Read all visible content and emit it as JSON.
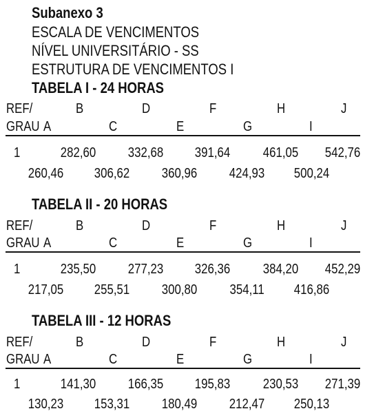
{
  "header": {
    "subanexo": "Subanexo 3",
    "lines": [
      "ESCALA DE VENCIMENTOS",
      "NÍVEL UNIVERSITÁRIO - SS",
      "ESTRUTURA DE VENCIMENTOS I"
    ]
  },
  "columns": {
    "ref": "REF/",
    "grau": "GRAU",
    "upper": [
      "B",
      "D",
      "F",
      "H",
      "J"
    ],
    "lower": [
      "A",
      "C",
      "E",
      "G",
      "I"
    ]
  },
  "tables": [
    {
      "title": "TABELA I - 24 HORAS",
      "ref_num": "1",
      "upper_values": [
        "282,60",
        "332,68",
        "391,64",
        "461,05",
        "542,76"
      ],
      "lower_values": [
        "260,46",
        "306,62",
        "360,96",
        "424,93",
        "500,24"
      ]
    },
    {
      "title": "TABELA II - 20 HORAS",
      "ref_num": "1",
      "upper_values": [
        "235,50",
        "277,23",
        "326,36",
        "384,20",
        "452,29"
      ],
      "lower_values": [
        "217,05",
        "255,51",
        "300,80",
        "354,11",
        "416,86"
      ]
    },
    {
      "title": "TABELA III - 12 HORAS",
      "ref_num": "1",
      "upper_values": [
        "141,30",
        "166,35",
        "195,83",
        "230,53",
        "271,39"
      ],
      "lower_values": [
        "130,23",
        "153,31",
        "180,49",
        "212,47",
        "250,13"
      ]
    }
  ]
}
